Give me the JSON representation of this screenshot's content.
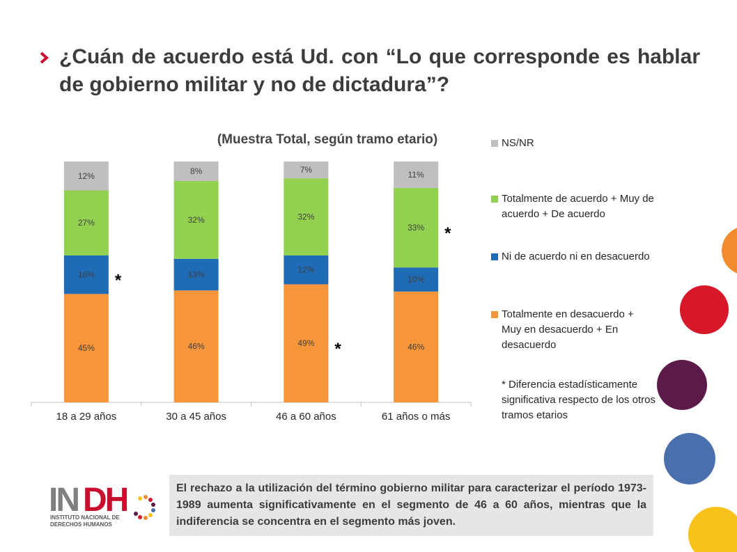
{
  "title": "¿Cuán de acuerdo está Ud. con “Lo que corresponde es hablar de gobierno militar y no de dictadura”?",
  "chart_data": {
    "type": "bar",
    "stacked": true,
    "subtitle": "(Muestra Total, según tramo etario)",
    "categories": [
      "18 a 29 años",
      "30 a 45 años",
      "46 a 60 años",
      "61 años o más"
    ],
    "series": [
      {
        "name": "Totalmente en desacuerdo + Muy en desacuerdo + En desacuerdo",
        "color": "#f7953b",
        "values": [
          45,
          46,
          49,
          46
        ],
        "labels": [
          "45%",
          "46%",
          "49%",
          "46%"
        ]
      },
      {
        "name": "Ni de acuerdo ni en desacuerdo",
        "color": "#1f6bb5",
        "values": [
          16,
          13,
          12,
          10
        ],
        "labels": [
          "16%",
          "13%",
          "12%",
          "10%"
        ]
      },
      {
        "name": "Totalmente de acuerdo + Muy de acuerdo + De acuerdo",
        "color": "#92d050",
        "values": [
          27,
          32,
          32,
          33
        ],
        "labels": [
          "27%",
          "32%",
          "32%",
          "33%"
        ]
      },
      {
        "name": "NS/NR",
        "color": "#bfbfbf",
        "values": [
          12,
          8,
          7,
          11
        ],
        "labels": [
          "12%",
          "8%",
          "7%",
          "11%"
        ]
      }
    ],
    "significance_markers": [
      {
        "category": "18 a 29 años",
        "series": "Ni de acuerdo ni en desacuerdo",
        "text": "*"
      },
      {
        "category": "46 a 60 años",
        "series": "Totalmente en desacuerdo + Muy en desacuerdo + En desacuerdo",
        "text": "*"
      },
      {
        "category": "61 años o más",
        "series": "Totalmente de acuerdo + Muy de acuerdo + De acuerdo",
        "text": "*"
      }
    ],
    "ylim": [
      0,
      100
    ],
    "legend_position": "right"
  },
  "legend": {
    "items": [
      {
        "label": "NS/NR",
        "color": "#bfbfbf"
      },
      {
        "label": "Totalmente de acuerdo + Muy de acuerdo + De acuerdo",
        "color": "#92d050"
      },
      {
        "label": "Ni de acuerdo ni en desacuerdo",
        "color": "#1f6bb5"
      },
      {
        "label": "Totalmente en desacuerdo + Muy en desacuerdo + En desacuerdo",
        "color": "#f7953b"
      }
    ],
    "note": "* Diferencia estadísticamente significativa respecto de los otros tramos etarios"
  },
  "logo": {
    "text": "INDH",
    "subtitle_line1": "INSTITUTO NACIONAL DE",
    "subtitle_line2": "DERECHOS HUMANOS"
  },
  "note_box": "El rechazo a la utilización del término gobierno militar para caracterizar el período 1973-1989 aumenta significativamente en el segmento de 46 a 60 años, mientras que la indiferencia se concentra en el segmento más joven.",
  "colors": {
    "accent_red": "#c8102e",
    "orange": "#f7953b",
    "blue": "#1f6bb5",
    "green": "#92d050",
    "gray": "#bfbfbf"
  }
}
